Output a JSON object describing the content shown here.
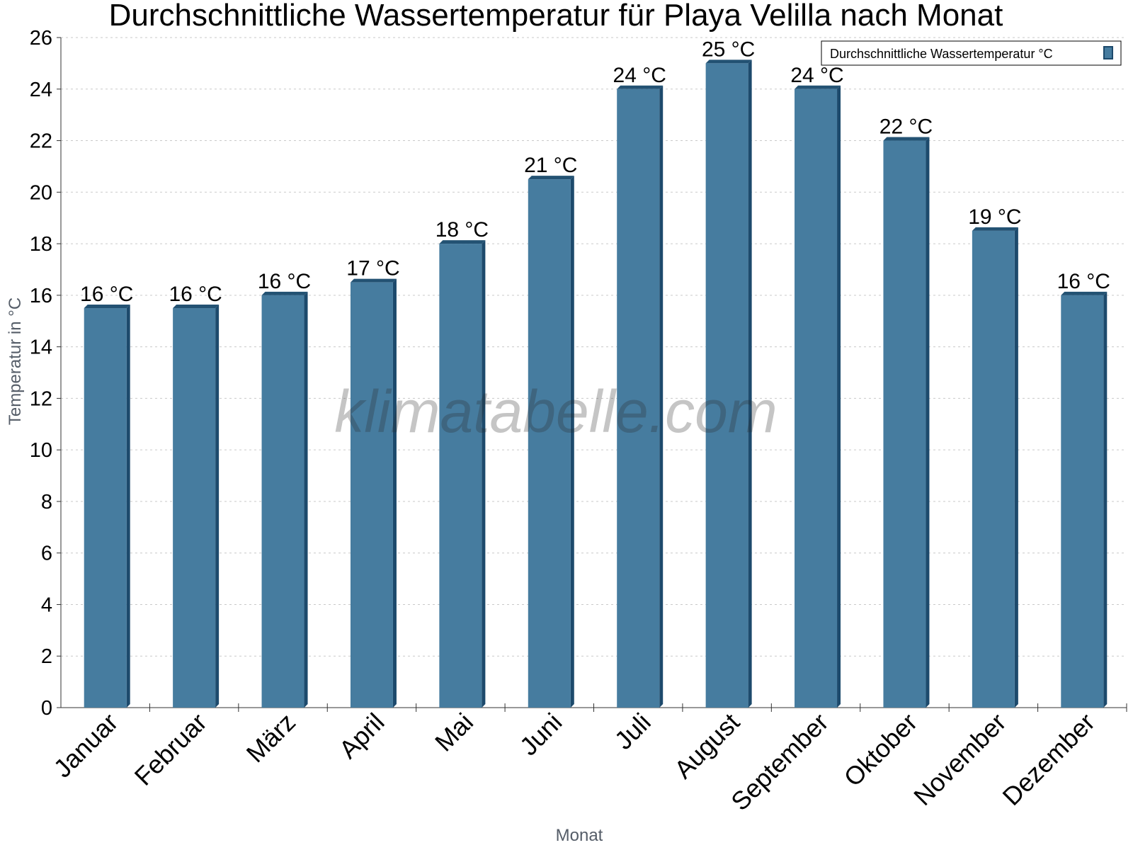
{
  "chart_data": {
    "type": "bar",
    "title": "Durchschnittliche Wassertemperatur für Playa Velilla nach Monat",
    "xlabel": "Monat",
    "ylabel": "Temperatur in °C",
    "categories": [
      "Januar",
      "Februar",
      "März",
      "April",
      "Mai",
      "Juni",
      "Juli",
      "August",
      "September",
      "Oktober",
      "November",
      "Dezember"
    ],
    "series": [
      {
        "name": "Durchschnittliche Wassertemperatur °C",
        "values": [
          15.5,
          15.5,
          16,
          16.5,
          18,
          20.5,
          24,
          25,
          24,
          22,
          18.5,
          16
        ],
        "labels": [
          "16 °C",
          "16 °C",
          "16 °C",
          "17 °C",
          "18 °C",
          "21 °C",
          "24 °C",
          "25 °C",
          "24 °C",
          "22 °C",
          "19 °C",
          "16 °C"
        ]
      }
    ],
    "ylim": [
      0,
      26
    ],
    "yticks": [
      0,
      2,
      4,
      6,
      8,
      10,
      12,
      14,
      16,
      18,
      20,
      22,
      24,
      26
    ],
    "grid": true,
    "legend_position": "top-right",
    "watermark": "klimatabelle.com",
    "colors": {
      "bar_front": "#467c9f",
      "bar_side": "#1d4a6c",
      "bar_top": "#235273"
    }
  }
}
